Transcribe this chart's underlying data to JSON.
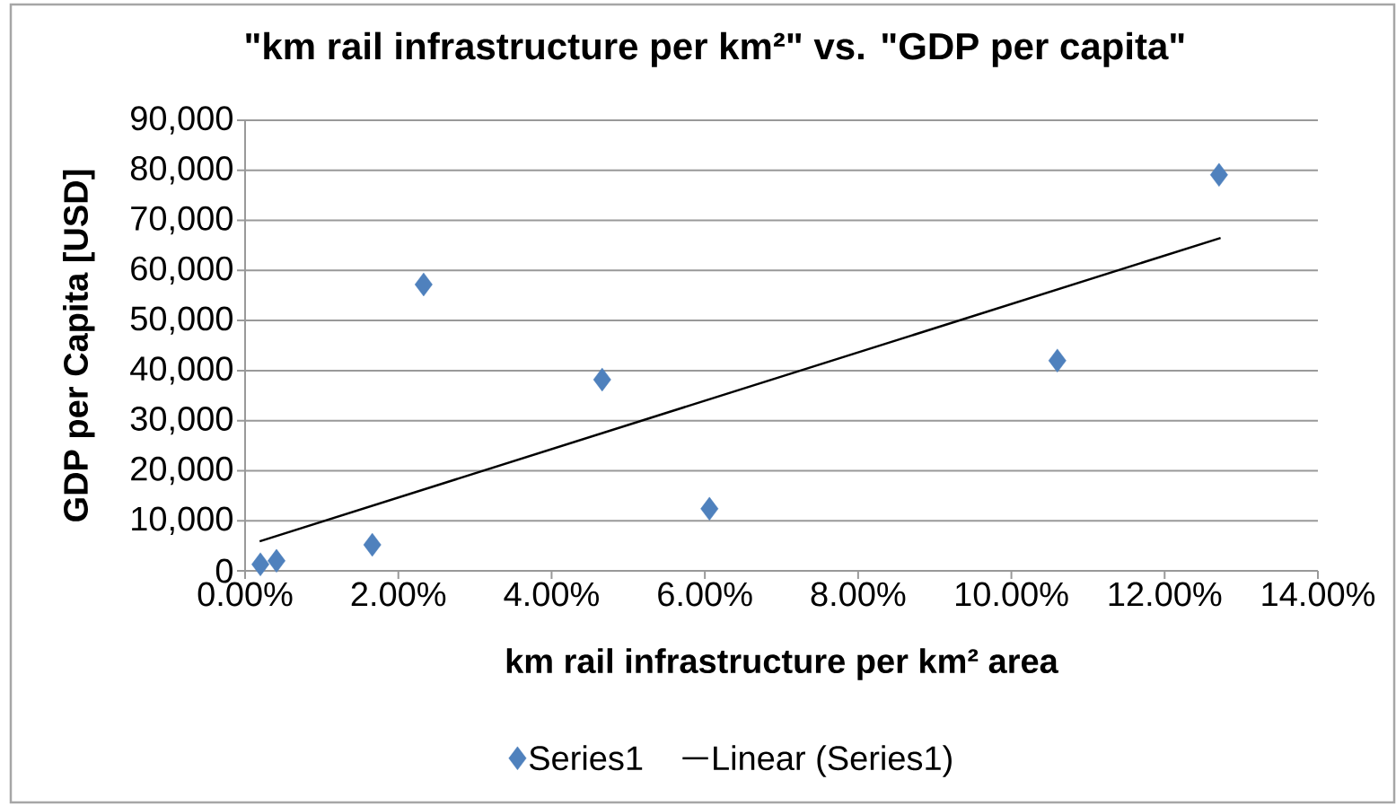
{
  "chart_data": {
    "type": "scatter",
    "title": "\"km rail infrastructure per km²\" vs. \"GDP per capita\"",
    "xlabel": "km rail infrastructure per km² area",
    "ylabel": "GDP per Capita [USD]",
    "xlim": [
      0,
      14
    ],
    "ylim": [
      0,
      90000
    ],
    "xticks": [
      {
        "value": 0,
        "label": "0.00%"
      },
      {
        "value": 2,
        "label": "2.00%"
      },
      {
        "value": 4,
        "label": "4.00%"
      },
      {
        "value": 6,
        "label": "6.00%"
      },
      {
        "value": 8,
        "label": "8.00%"
      },
      {
        "value": 10,
        "label": "10.00%"
      },
      {
        "value": 12,
        "label": "12.00%"
      },
      {
        "value": 14,
        "label": "14.00%"
      }
    ],
    "yticks": [
      0,
      {
        "value": 10000,
        "label": "10,000"
      },
      {
        "value": 20000,
        "label": "20,000"
      },
      {
        "value": 30000,
        "label": "30,000"
      },
      {
        "value": 40000,
        "label": "40,000"
      },
      {
        "value": 50000,
        "label": "50,000"
      },
      {
        "value": 60000,
        "label": "60,000"
      },
      {
        "value": 70000,
        "label": "70,000"
      },
      {
        "value": 80000,
        "label": "80,000"
      },
      {
        "value": 90000,
        "label": "90,000"
      }
    ],
    "grid": "y",
    "legend": "bottom",
    "series": [
      {
        "name": "Series1",
        "type": "scatter",
        "marker": "diamond",
        "color": "#4f81bd",
        "x": [
          0.2,
          0.41,
          1.66,
          2.33,
          4.66,
          6.06,
          10.6,
          12.71
        ],
        "values": [
          1300,
          2000,
          5200,
          57200,
          38200,
          12400,
          42000,
          79100
        ]
      },
      {
        "name": "Linear (Series1)",
        "type": "line",
        "color": "#000000",
        "line_style": "solid",
        "x": [
          0.19,
          12.73
        ],
        "values": [
          5900,
          66500
        ]
      }
    ]
  }
}
